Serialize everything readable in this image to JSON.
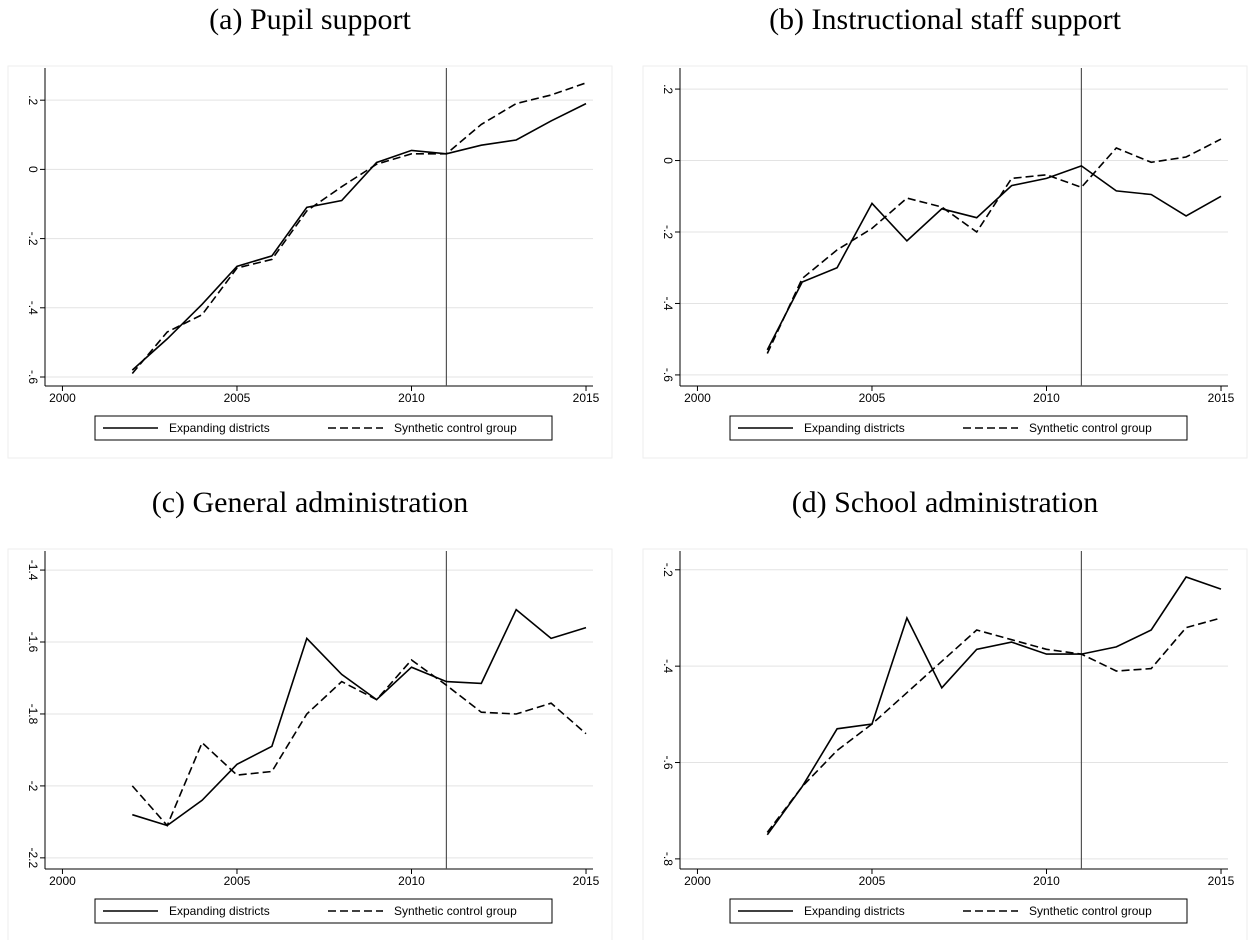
{
  "chart_data": [
    {
      "type": "line",
      "title": "(a) Pupil support",
      "x": [
        2002,
        2003,
        2004,
        2005,
        2006,
        2007,
        2008,
        2009,
        2010,
        2011,
        2012,
        2013,
        2014,
        2015
      ],
      "series": [
        {
          "name": "Expanding districts",
          "color": "#000000",
          "style": "solid",
          "values": [
            -0.58,
            -0.49,
            -0.39,
            -0.28,
            -0.25,
            -0.11,
            -0.09,
            0.02,
            0.055,
            0.045,
            0.07,
            0.085,
            0.14,
            0.19
          ]
        },
        {
          "name": "Synthetic control group",
          "color": "#000000",
          "style": "dashed",
          "values": [
            -0.59,
            -0.47,
            -0.42,
            -0.285,
            -0.26,
            -0.12,
            -0.05,
            0.015,
            0.045,
            0.045,
            0.13,
            0.19,
            0.215,
            0.25
          ]
        }
      ],
      "xlim": [
        1999.5,
        2015.2
      ],
      "xticks": [
        2000,
        2005,
        2010,
        2015
      ],
      "ylim": [
        -0.626,
        0.293
      ],
      "yticks": [
        {
          "value": -0.6,
          "label": "-.6"
        },
        {
          "value": -0.4,
          "label": "-.4"
        },
        {
          "value": -0.2,
          "label": "-.2"
        },
        0,
        {
          "value": 0.2,
          "label": ".2"
        }
      ],
      "grid": true,
      "vline": 2011,
      "legend": "bottom"
    },
    {
      "type": "line",
      "title": "(b) Instructional staff support",
      "x": [
        2002,
        2003,
        2004,
        2005,
        2006,
        2007,
        2008,
        2009,
        2010,
        2011,
        2012,
        2013,
        2014,
        2015
      ],
      "series": [
        {
          "name": "Expanding districts",
          "color": "#000000",
          "style": "solid",
          "values": [
            -0.53,
            -0.34,
            -0.3,
            -0.12,
            -0.225,
            -0.135,
            -0.16,
            -0.07,
            -0.05,
            -0.015,
            -0.085,
            -0.095,
            -0.155,
            -0.1
          ]
        },
        {
          "name": "Synthetic control group",
          "color": "#000000",
          "style": "dashed",
          "values": [
            -0.54,
            -0.33,
            -0.25,
            -0.19,
            -0.105,
            -0.13,
            -0.2,
            -0.05,
            -0.04,
            -0.075,
            0.035,
            -0.005,
            0.01,
            0.06
          ]
        }
      ],
      "xlim": [
        1999.5,
        2015.2
      ],
      "xticks": [
        2000,
        2005,
        2010,
        2015
      ],
      "ylim": [
        -0.631,
        0.259
      ],
      "yticks": [
        {
          "value": -0.6,
          "label": "-.6"
        },
        {
          "value": -0.4,
          "label": "-.4"
        },
        {
          "value": -0.2,
          "label": "-.2"
        },
        0,
        {
          "value": 0.2,
          "label": ".2"
        }
      ],
      "grid": true,
      "vline": 2011,
      "legend": "bottom"
    },
    {
      "type": "line",
      "title": "(c) General administration",
      "x": [
        2002,
        2003,
        2004,
        2005,
        2006,
        2007,
        2008,
        2009,
        2010,
        2011,
        2012,
        2013,
        2014,
        2015
      ],
      "series": [
        {
          "name": "Expanding districts",
          "color": "#000000",
          "style": "solid",
          "values": [
            -2.08,
            -2.11,
            -2.04,
            -1.94,
            -1.89,
            -1.59,
            -1.69,
            -1.76,
            -1.67,
            -1.71,
            -1.715,
            -1.51,
            -1.59,
            -1.56
          ]
        },
        {
          "name": "Synthetic control group",
          "color": "#000000",
          "style": "dashed",
          "values": [
            -2.0,
            -2.11,
            -1.88,
            -1.97,
            -1.96,
            -1.8,
            -1.71,
            -1.76,
            -1.65,
            -1.72,
            -1.795,
            -1.8,
            -1.77,
            -1.855
          ]
        }
      ],
      "xlim": [
        1999.5,
        2015.2
      ],
      "xticks": [
        2000,
        2005,
        2010,
        2015
      ],
      "ylim": [
        -2.231,
        -1.347
      ],
      "yticks": [
        -2.2,
        -2,
        -1.8,
        -1.6,
        -1.4
      ],
      "grid": true,
      "vline": 2011,
      "legend": "bottom"
    },
    {
      "type": "line",
      "title": "(d) School administration",
      "x": [
        2002,
        2003,
        2004,
        2005,
        2006,
        2007,
        2008,
        2009,
        2010,
        2011,
        2012,
        2013,
        2014,
        2015
      ],
      "series": [
        {
          "name": "Expanding districts",
          "color": "#000000",
          "style": "solid",
          "values": [
            -0.75,
            -0.65,
            -0.53,
            -0.52,
            -0.3,
            -0.445,
            -0.365,
            -0.35,
            -0.375,
            -0.375,
            -0.36,
            -0.325,
            -0.215,
            -0.24
          ]
        },
        {
          "name": "Synthetic control group",
          "color": "#000000",
          "style": "dashed",
          "values": [
            -0.745,
            -0.65,
            -0.575,
            -0.52,
            -0.455,
            -0.39,
            -0.325,
            -0.345,
            -0.365,
            -0.375,
            -0.41,
            -0.405,
            -0.32,
            -0.3
          ]
        }
      ],
      "xlim": [
        1999.5,
        2015.2
      ],
      "xticks": [
        2000,
        2005,
        2010,
        2015
      ],
      "ylim": [
        -0.821,
        -0.161
      ],
      "yticks": [
        {
          "value": -0.8,
          "label": "-.8"
        },
        {
          "value": -0.6,
          "label": "-.6"
        },
        {
          "value": -0.4,
          "label": "-.4"
        },
        {
          "value": -0.2,
          "label": "-.2"
        }
      ],
      "grid": true,
      "vline": 2011,
      "legend": "bottom"
    }
  ]
}
